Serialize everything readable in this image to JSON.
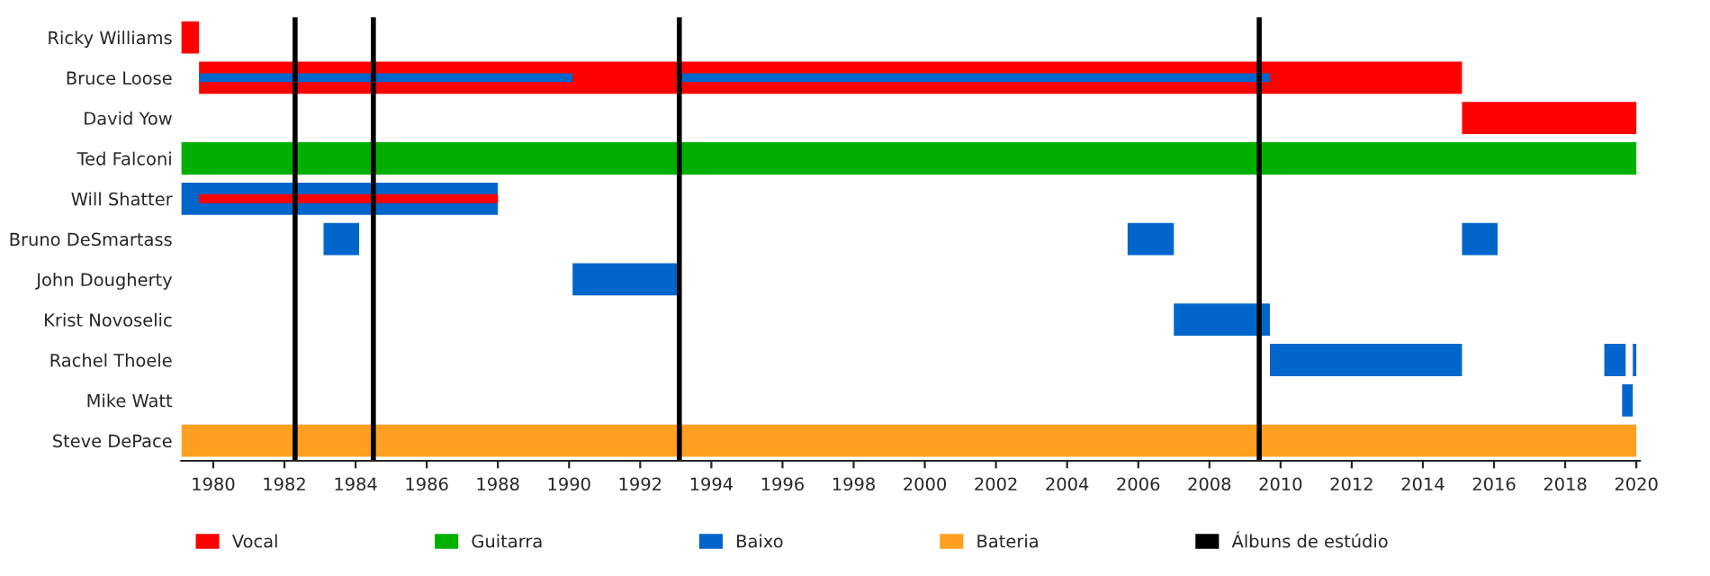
{
  "chart_data": {
    "type": "bar",
    "orientation": "horizontal",
    "categories": [
      "Ricky Williams",
      "Bruce Loose",
      "David Yow",
      "Ted Falconi",
      "Will Shatter",
      "Bruno DeSmartass",
      "John Dougherty",
      "Krist Novoselic",
      "Rachel Thoele",
      "Mike Watt",
      "Steve DePace"
    ],
    "series": [
      {
        "name": "Vocal",
        "color": "#ff0000",
        "base": [
          1979.1,
          1979.6,
          2015.1,
          null,
          null,
          null,
          null,
          null,
          null,
          null,
          null
        ],
        "values": [
          0.5,
          35.5,
          4.9,
          null,
          null,
          null,
          null,
          null,
          null,
          null,
          null
        ]
      },
      {
        "name": "Guitarra",
        "color": "#00b000",
        "base": [
          null,
          null,
          null,
          1979.1,
          null,
          null,
          null,
          null,
          null,
          null,
          null
        ],
        "values": [
          null,
          null,
          null,
          40.9,
          null,
          null,
          null,
          null,
          null,
          null,
          null
        ]
      },
      {
        "name": "Baixo",
        "color": "#0066cc",
        "base": [
          null,
          1979.6,
          null,
          null,
          1979.1,
          1983.1,
          1990.1,
          2007.0,
          2009.7,
          2019.6,
          null
        ],
        "values": [
          null,
          10.5,
          null,
          null,
          8.9,
          1.0,
          3.0,
          2.7,
          5.4,
          0.3,
          null
        ]
      },
      {
        "color": "#0066cc",
        "base": [
          null,
          1993.1,
          null,
          null,
          null,
          2005.7,
          null,
          null,
          2019.1,
          null,
          null
        ],
        "values": [
          null,
          16.6,
          null,
          null,
          null,
          1.3,
          null,
          null,
          0.6,
          null,
          null
        ]
      },
      {
        "color": "#0066cc",
        "base": [
          null,
          null,
          null,
          null,
          null,
          2015.1,
          null,
          null,
          2019.9,
          null,
          null
        ],
        "values": [
          null,
          null,
          null,
          null,
          null,
          1.0,
          null,
          null,
          0.1,
          null,
          null
        ]
      },
      {
        "color": "#ff0000",
        "base": [
          null,
          null,
          null,
          null,
          1979.6,
          null,
          null,
          null,
          null,
          null,
          null
        ],
        "values": [
          null,
          null,
          null,
          null,
          8.4,
          null,
          null,
          null,
          null,
          null,
          null
        ]
      },
      {
        "name": "Bateria",
        "color": "#ffa020",
        "base": [
          null,
          null,
          null,
          null,
          null,
          null,
          null,
          null,
          null,
          null,
          1979.1
        ],
        "values": [
          null,
          null,
          null,
          null,
          null,
          null,
          null,
          null,
          null,
          null,
          40.9
        ]
      }
    ],
    "ref_lines": [
      {
        "axis": "x",
        "value": 1982.3,
        "label": "Álbuns de estúdio",
        "color": "#000000"
      },
      {
        "axis": "x",
        "value": 1984.5,
        "label": null,
        "color": "#000000"
      },
      {
        "axis": "x",
        "value": 1993.1,
        "label": null,
        "color": "#000000"
      },
      {
        "axis": "x",
        "value": 2009.4,
        "label": null,
        "color": "#000000"
      }
    ],
    "xlim": [
      1979.1,
      2020.1
    ],
    "xticks": [
      1980,
      1982,
      1984,
      1986,
      1988,
      1990,
      1992,
      1994,
      1996,
      1998,
      2000,
      2002,
      2004,
      2006,
      2008,
      2010,
      2012,
      2014,
      2016,
      2018,
      2020
    ],
    "legend": "bottom"
  }
}
